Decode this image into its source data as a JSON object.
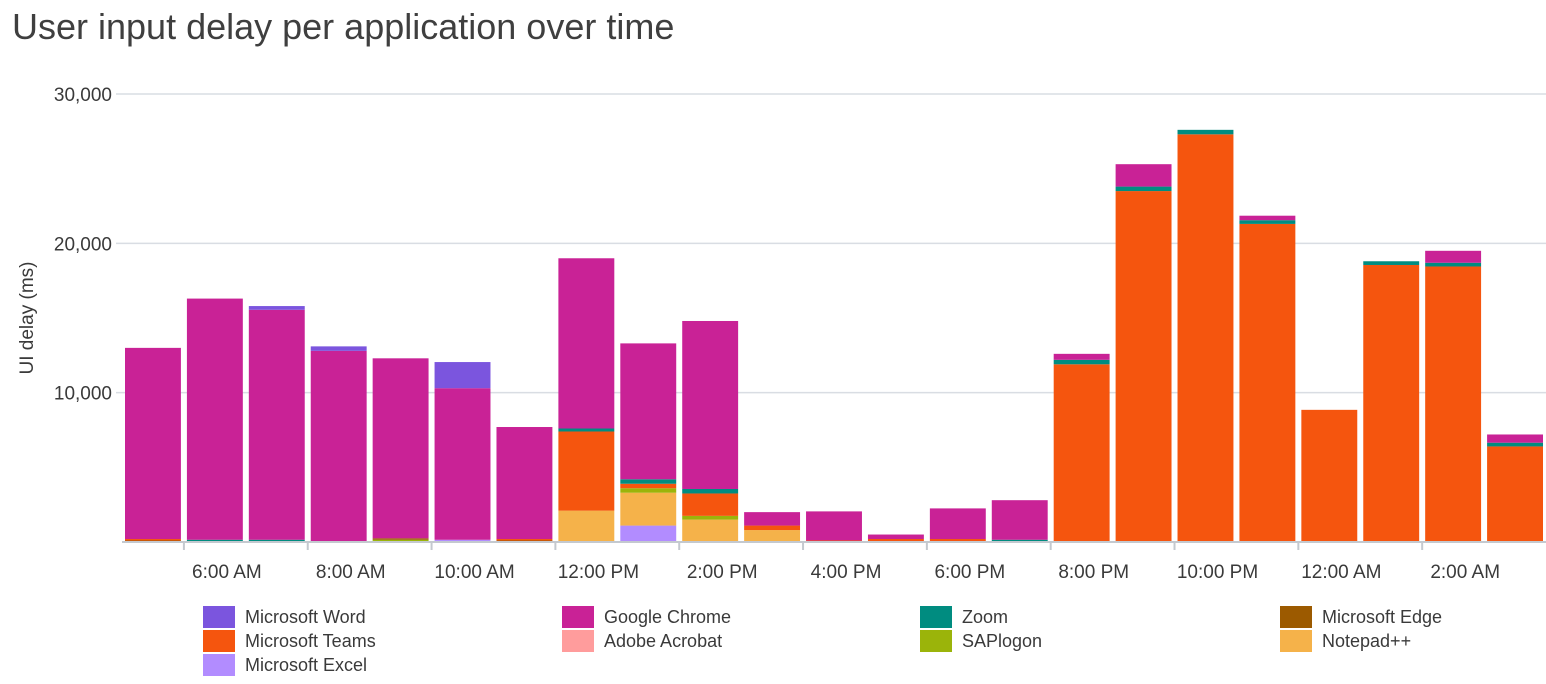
{
  "chart_data": {
    "type": "bar",
    "stacked": true,
    "title": "User input delay per application over time",
    "xlabel": "",
    "ylabel": "UI delay (ms)",
    "ylim": [
      0,
      30000
    ],
    "yticks": [
      10000,
      20000,
      30000
    ],
    "ytick_labels": [
      "10,000",
      "20,000",
      "30,000"
    ],
    "grid": true,
    "legend_position": "bottom",
    "categories": [
      "5:00 AM",
      "6:00 AM",
      "7:00 AM",
      "8:00 AM",
      "9:00 AM",
      "10:00 AM",
      "11:00 AM",
      "12:00 PM",
      "1:00 PM",
      "2:00 PM",
      "3:00 PM",
      "4:00 PM",
      "5:00 PM",
      "6:00 PM",
      "7:00 PM",
      "8:00 PM",
      "9:00 PM",
      "10:00 PM",
      "11:00 PM",
      "12:00 AM",
      "1:00 AM",
      "2:00 AM",
      "3:00 AM"
    ],
    "xtick_labels": [
      "6:00 AM",
      "8:00 AM",
      "10:00 AM",
      "12:00 PM",
      "2:00 PM",
      "4:00 PM",
      "6:00 PM",
      "8:00 PM",
      "10:00 PM",
      "12:00 AM",
      "2:00 AM"
    ],
    "series": [
      {
        "name": "Microsoft Excel",
        "color": "#b28cff",
        "values": [
          0,
          0,
          0,
          0,
          0,
          150,
          0,
          0,
          1100,
          0,
          0,
          0,
          0,
          0,
          0,
          0,
          0,
          0,
          0,
          0,
          0,
          0,
          0
        ]
      },
      {
        "name": "Notepad++",
        "color": "#f5b24a",
        "values": [
          0,
          0,
          0,
          0,
          0,
          0,
          0,
          2100,
          2200,
          1500,
          800,
          0,
          0,
          0,
          0,
          0,
          0,
          0,
          0,
          0,
          0,
          0,
          0
        ]
      },
      {
        "name": "SAPlogon",
        "color": "#9bb40a",
        "values": [
          0,
          0,
          0,
          0,
          150,
          0,
          0,
          0,
          300,
          250,
          0,
          0,
          0,
          0,
          0,
          0,
          0,
          0,
          0,
          0,
          0,
          0,
          0
        ]
      },
      {
        "name": "Microsoft Edge",
        "color": "#9c5a00",
        "values": [
          100,
          0,
          0,
          0,
          100,
          0,
          100,
          0,
          0,
          0,
          0,
          0,
          0,
          0,
          0,
          0,
          0,
          0,
          0,
          0,
          0,
          0,
          0
        ]
      },
      {
        "name": "Microsoft Teams",
        "color": "#f5550e",
        "values": [
          100,
          0,
          0,
          0,
          0,
          0,
          100,
          5300,
          300,
          1500,
          300,
          100,
          200,
          200,
          0,
          11900,
          23500,
          27300,
          21300,
          8850,
          18550,
          18450,
          6400
        ]
      },
      {
        "name": "Adobe Acrobat",
        "color": "#ff9c9c",
        "values": [
          0,
          0,
          0,
          0,
          0,
          0,
          0,
          0,
          0,
          0,
          0,
          0,
          0,
          0,
          0,
          0,
          0,
          0,
          0,
          0,
          0,
          0,
          0
        ]
      },
      {
        "name": "Zoom",
        "color": "#008c80",
        "values": [
          0,
          150,
          150,
          0,
          0,
          0,
          0,
          200,
          300,
          300,
          0,
          0,
          0,
          0,
          150,
          300,
          300,
          300,
          250,
          0,
          250,
          250,
          250
        ]
      },
      {
        "name": "Google Chrome",
        "color": "#c92296",
        "values": [
          12800,
          16150,
          15400,
          12800,
          12050,
          10150,
          7500,
          11400,
          9100,
          11250,
          900,
          1950,
          300,
          2050,
          2650,
          400,
          1500,
          0,
          300,
          0,
          0,
          800,
          550
        ]
      },
      {
        "name": "Microsoft Word",
        "color": "#7b55de",
        "values": [
          0,
          0,
          250,
          300,
          0,
          1750,
          0,
          0,
          0,
          0,
          0,
          0,
          0,
          0,
          0,
          0,
          0,
          0,
          0,
          0,
          0,
          0,
          0
        ]
      }
    ],
    "legend_order": [
      "Microsoft Word",
      "Google Chrome",
      "Zoom",
      "Microsoft Edge",
      "Microsoft Teams",
      "Adobe Acrobat",
      "SAPlogon",
      "Notepad++",
      "Microsoft Excel"
    ],
    "colors": {
      "gridline": "#d9dde3",
      "axis": "#c4c9cf"
    }
  }
}
